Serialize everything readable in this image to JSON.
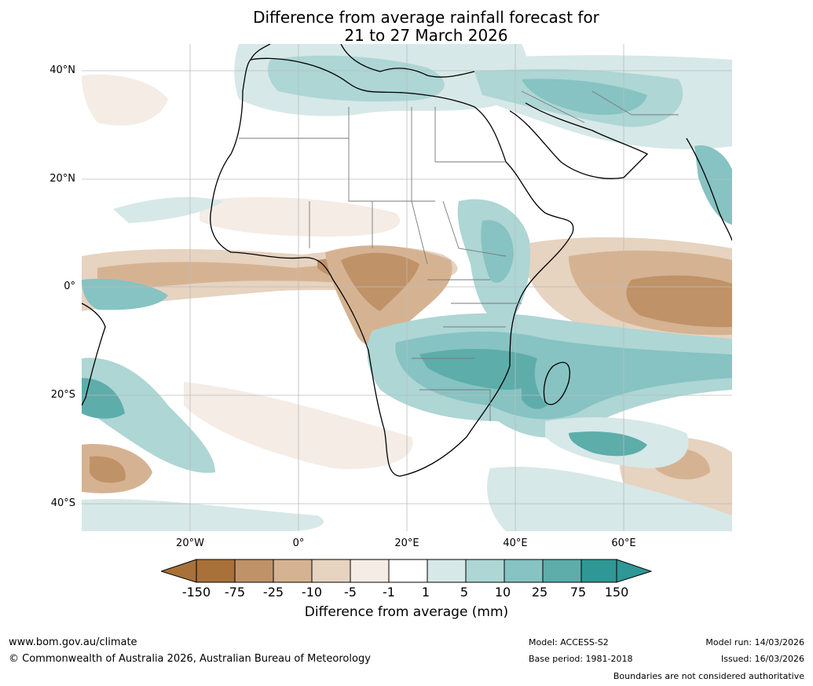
{
  "title": {
    "line1": "Difference from average rainfall forecast for",
    "line2": "21 to 27 March 2026"
  },
  "axes": {
    "lat_labels": [
      "40°N",
      "20°N",
      "0°",
      "20°S",
      "40°S"
    ],
    "lon_labels": [
      "20°W",
      "0°",
      "20°E",
      "40°E",
      "60°E"
    ]
  },
  "colorbar": {
    "labels": [
      "-150",
      "-75",
      "-25",
      "-10",
      "-5",
      "-1",
      "1",
      "5",
      "10",
      "25",
      "75",
      "150"
    ],
    "colors": [
      "#a8713a",
      "#a8713a",
      "#c09268",
      "#d5b392",
      "#e6d3c0",
      "#f4ece5",
      "#ffffff",
      "#d6e8e7",
      "#add6d5",
      "#86c3c2",
      "#5dadab",
      "#2f9795",
      "#2f9795"
    ],
    "title": "Difference from average (mm)"
  },
  "footer": {
    "url": "www.bom.gov.au/climate",
    "copyright": "© Commonwealth of Australia 2026, Australian Bureau of Meteorology",
    "model": "Model: ACCESS-S2",
    "base_period": "Base period: 1981-2018",
    "model_run": "Model run: 14/03/2026",
    "issued": "Issued: 16/03/2026",
    "disclaimer": "Boundaries are not considered authoritative"
  }
}
